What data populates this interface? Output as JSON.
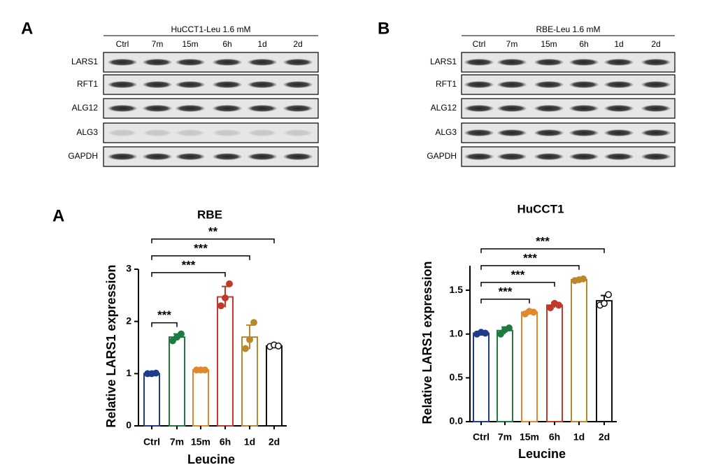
{
  "blots": [
    {
      "panel": "A",
      "title": "HuCCT1-Leu 1.6 mM",
      "lanes": [
        "Ctrl",
        "7m",
        "15m",
        "6h",
        "1d",
        "2d"
      ],
      "rows": [
        "LARS1",
        "RFT1",
        "ALG12",
        "ALG3",
        "GAPDH"
      ]
    },
    {
      "panel": "B",
      "title": "RBE-Leu 1.6 mM",
      "lanes": [
        "Ctrl",
        "7m",
        "15m",
        "6h",
        "1d",
        "2d"
      ],
      "rows": [
        "LARS1",
        "RFT1",
        "ALG12",
        "ALG3",
        "GAPDH"
      ]
    }
  ],
  "chart_data": [
    {
      "type": "bar",
      "panel": "A",
      "title": "RBE",
      "x_label": "Leucine",
      "y_label": "Relative LARS1 expression",
      "categories": [
        "Ctrl",
        "7m",
        "15m",
        "6h",
        "1d",
        "2d"
      ],
      "values": [
        1.0,
        1.7,
        1.07,
        2.47,
        1.7,
        1.53
      ],
      "errors": [
        0.02,
        0.06,
        0.01,
        0.2,
        0.23,
        0.02
      ],
      "points": [
        [
          1.0,
          1.0,
          1.01
        ],
        [
          1.63,
          1.7,
          1.76
        ],
        [
          1.07,
          1.07,
          1.07
        ],
        [
          2.3,
          2.45,
          2.72
        ],
        [
          1.48,
          1.65,
          1.98
        ],
        [
          1.52,
          1.55,
          1.53
        ]
      ],
      "colors": [
        "#1f3b8c",
        "#1f7a3f",
        "#e0882b",
        "#c0392b",
        "#b8892b",
        "#111111"
      ],
      "ylim": [
        0,
        3
      ],
      "yticks": [
        0,
        1,
        2,
        3
      ],
      "comparisons": [
        {
          "from": "Ctrl",
          "to": "7m",
          "text": "***"
        },
        {
          "from": "Ctrl",
          "to": "6h",
          "text": "***"
        },
        {
          "from": "Ctrl",
          "to": "1d",
          "text": "***"
        },
        {
          "from": "Ctrl",
          "to": "2d",
          "text": "**"
        }
      ]
    },
    {
      "type": "bar",
      "title": "HuCCT1",
      "x_label": "Leucine",
      "y_label": "Relative LARS1 expression",
      "categories": [
        "Ctrl",
        "7m",
        "15m",
        "6h",
        "1d",
        "2d"
      ],
      "values": [
        1.01,
        1.04,
        1.25,
        1.33,
        1.62,
        1.38
      ],
      "errors": [
        0.01,
        0.04,
        0.02,
        0.03,
        0.01,
        0.06
      ],
      "points": [
        [
          1.0,
          1.02,
          1.01
        ],
        [
          1.0,
          1.05,
          1.07
        ],
        [
          1.23,
          1.26,
          1.25
        ],
        [
          1.3,
          1.35,
          1.33
        ],
        [
          1.61,
          1.62,
          1.63
        ],
        [
          1.33,
          1.35,
          1.45
        ]
      ],
      "colors": [
        "#1f3b8c",
        "#1f7a3f",
        "#e0882b",
        "#c0392b",
        "#b8892b",
        "#111111"
      ],
      "ylim": [
        0,
        1.78
      ],
      "yticks": [
        {
          "value": 0,
          "label": "0.0"
        },
        0.5,
        {
          "value": 1,
          "label": "1.0"
        },
        1.5
      ],
      "comparisons": [
        {
          "from": "Ctrl",
          "to": "15m",
          "text": "***"
        },
        {
          "from": "Ctrl",
          "to": "6h",
          "text": "***"
        },
        {
          "from": "Ctrl",
          "to": "1d",
          "text": "***"
        },
        {
          "from": "Ctrl",
          "to": "2d",
          "text": "***"
        }
      ]
    }
  ]
}
